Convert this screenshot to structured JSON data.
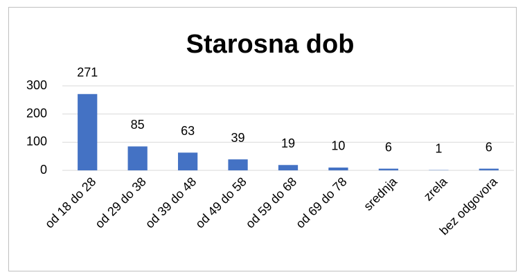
{
  "chart_data": {
    "type": "bar",
    "title": "Starosna dob",
    "categories": [
      "od 18 do 28",
      "od 29 do 38",
      "od 39 do 48",
      "od 49 do 58",
      "od 59 do 68",
      "od 69 do 78",
      "srednja",
      "zrela",
      "bez odgovora"
    ],
    "values": [
      271,
      85,
      63,
      39,
      19,
      10,
      6,
      1,
      6
    ],
    "color": "#4472c4",
    "ylim": [
      0,
      300
    ],
    "yticks": [
      0,
      100,
      200,
      300
    ],
    "grid": true
  }
}
